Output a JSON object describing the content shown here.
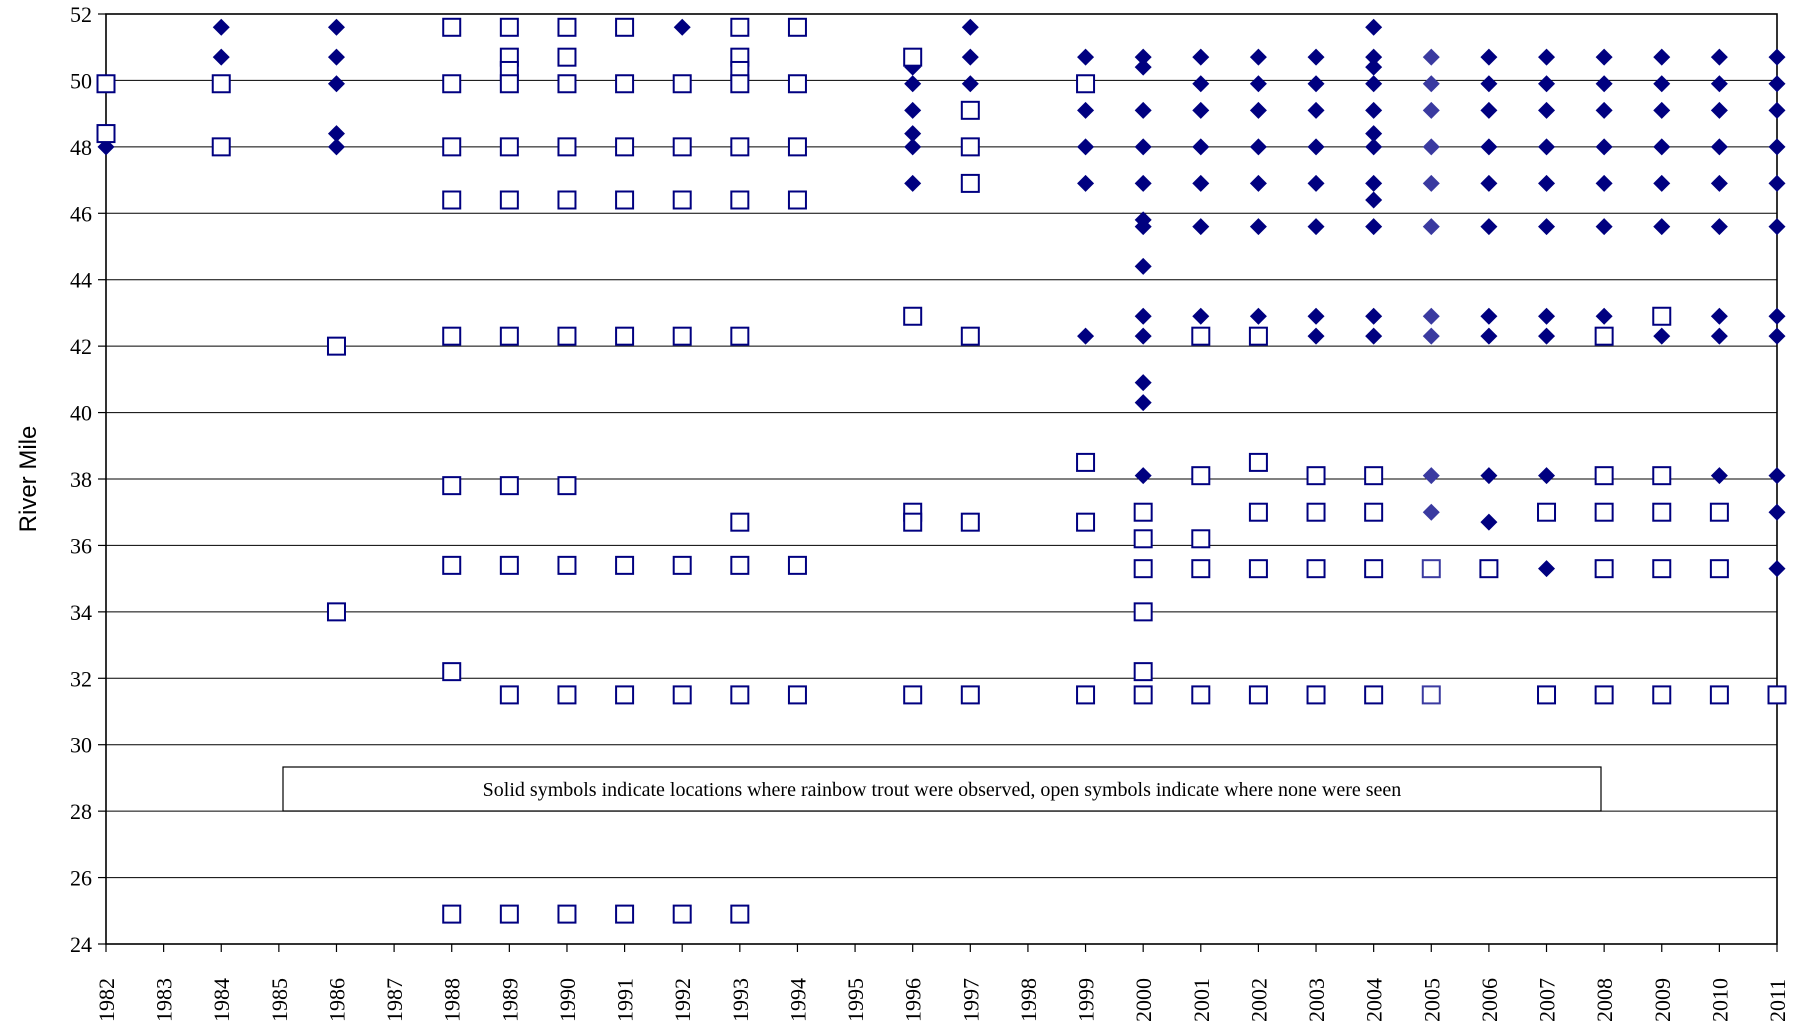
{
  "chart_data": {
    "type": "scatter",
    "ylabel": "River Mile",
    "xlabel": "",
    "ylim": [
      24,
      52
    ],
    "yticks": [
      24,
      26,
      28,
      30,
      32,
      34,
      36,
      38,
      40,
      42,
      44,
      46,
      48,
      50,
      52
    ],
    "xcategories": [
      1982,
      1983,
      1984,
      1985,
      1986,
      1987,
      1988,
      1989,
      1990,
      1991,
      1992,
      1993,
      1994,
      1995,
      1996,
      1997,
      1998,
      1999,
      2000,
      2001,
      2002,
      2003,
      2004,
      2005,
      2006,
      2007,
      2008,
      2009,
      2010,
      2011
    ],
    "grid": "horizontal",
    "annotation": "Solid symbols indicate locations where rainbow trout were observed, open symbols indicate where none were seen",
    "colors": {
      "marker": "#000080",
      "marker_2005": "#3a3aa0",
      "marker_teal": "#204a50",
      "axis": "#000000"
    },
    "series": [
      {
        "marker": "filled-diamond",
        "points": [
          [
            1982,
            48.0
          ],
          [
            1984,
            51.6
          ],
          [
            1984,
            50.7
          ],
          [
            1986,
            51.6
          ],
          [
            1986,
            50.7
          ],
          [
            1986,
            49.9
          ],
          [
            1986,
            48.4
          ],
          [
            1986,
            48.0
          ],
          [
            1992,
            51.6
          ],
          [
            1996,
            50.4
          ],
          [
            1996,
            49.9
          ],
          [
            1996,
            49.1
          ],
          [
            1996,
            48.4
          ],
          [
            1996,
            48.0
          ],
          [
            1996,
            46.9
          ],
          [
            1997,
            51.6
          ],
          [
            1997,
            50.7
          ],
          [
            1997,
            49.9
          ],
          [
            1999,
            50.7
          ],
          [
            1999,
            49.1
          ],
          [
            1999,
            48.0
          ],
          [
            1999,
            46.9
          ],
          [
            1999,
            42.3
          ],
          [
            2000,
            50.7
          ],
          [
            2000,
            50.4
          ],
          [
            2000,
            49.1
          ],
          [
            2000,
            48.0
          ],
          [
            2000,
            46.9
          ],
          [
            2000,
            45.8
          ],
          [
            2000,
            45.6
          ],
          [
            2000,
            44.4
          ],
          [
            2000,
            42.9
          ],
          [
            2000,
            42.3
          ],
          [
            2000,
            40.9
          ],
          [
            2000,
            40.3
          ],
          [
            2000,
            38.1
          ],
          [
            2001,
            50.7
          ],
          [
            2001,
            49.9
          ],
          [
            2001,
            49.1
          ],
          [
            2001,
            48.0
          ],
          [
            2001,
            46.9
          ],
          [
            2001,
            45.6
          ],
          [
            2001,
            42.9
          ],
          [
            2002,
            50.7
          ],
          [
            2002,
            49.9
          ],
          [
            2002,
            49.1
          ],
          [
            2002,
            48.0
          ],
          [
            2002,
            46.9
          ],
          [
            2002,
            45.6
          ],
          [
            2002,
            42.9
          ],
          [
            2003,
            50.7
          ],
          [
            2003,
            49.9
          ],
          [
            2003,
            49.1
          ],
          [
            2003,
            48.0
          ],
          [
            2003,
            46.9
          ],
          [
            2003,
            45.6
          ],
          [
            2003,
            42.9
          ],
          [
            2003,
            42.3
          ],
          [
            2004,
            51.6
          ],
          [
            2004,
            50.7
          ],
          [
            2004,
            50.4
          ],
          [
            2004,
            49.9
          ],
          [
            2004,
            49.1
          ],
          [
            2004,
            48.4
          ],
          [
            2004,
            48.0
          ],
          [
            2004,
            46.9
          ],
          [
            2004,
            46.4
          ],
          [
            2004,
            45.6
          ],
          [
            2004,
            42.9
          ],
          [
            2004,
            42.3
          ],
          [
            2005,
            50.7
          ],
          [
            2005,
            49.9
          ],
          [
            2005,
            49.1
          ],
          [
            2005,
            48.0
          ],
          [
            2005,
            46.9
          ],
          [
            2005,
            45.6
          ],
          [
            2005,
            42.9
          ],
          [
            2005,
            42.3
          ],
          [
            2005,
            38.1
          ],
          [
            2005,
            37.0
          ],
          [
            2006,
            50.7
          ],
          [
            2006,
            49.9
          ],
          [
            2006,
            49.1
          ],
          [
            2006,
            48.0
          ],
          [
            2006,
            46.9
          ],
          [
            2006,
            45.6
          ],
          [
            2006,
            42.9
          ],
          [
            2006,
            42.3
          ],
          [
            2006,
            38.1
          ],
          [
            2006,
            36.7
          ],
          [
            2007,
            50.7
          ],
          [
            2007,
            49.9
          ],
          [
            2007,
            49.1
          ],
          [
            2007,
            48.0
          ],
          [
            2007,
            46.9
          ],
          [
            2007,
            45.6
          ],
          [
            2007,
            42.9
          ],
          [
            2007,
            42.3
          ],
          [
            2007,
            38.1
          ],
          [
            2007,
            35.3
          ],
          [
            2008,
            50.7
          ],
          [
            2008,
            49.9
          ],
          [
            2008,
            49.1
          ],
          [
            2008,
            48.0
          ],
          [
            2008,
            46.9
          ],
          [
            2008,
            45.6
          ],
          [
            2008,
            42.9
          ],
          [
            2009,
            50.7
          ],
          [
            2009,
            49.9
          ],
          [
            2009,
            49.1
          ],
          [
            2009,
            48.0
          ],
          [
            2009,
            46.9
          ],
          [
            2009,
            45.6
          ],
          [
            2009,
            42.3
          ],
          [
            2010,
            50.7
          ],
          [
            2010,
            49.9
          ],
          [
            2010,
            49.1
          ],
          [
            2010,
            48.0
          ],
          [
            2010,
            46.9
          ],
          [
            2010,
            45.6
          ],
          [
            2010,
            42.9
          ],
          [
            2010,
            42.3
          ],
          [
            2010,
            38.1
          ],
          [
            2011,
            50.7
          ],
          [
            2011,
            49.9
          ],
          [
            2011,
            49.1
          ],
          [
            2011,
            48.0
          ],
          [
            2011,
            46.9
          ],
          [
            2011,
            45.6
          ],
          [
            2011,
            42.9
          ],
          [
            2011,
            42.3
          ],
          [
            2011,
            38.1
          ],
          [
            2011,
            37.0
          ],
          [
            2011,
            35.3
          ]
        ]
      },
      {
        "marker": "open-square",
        "points": [
          [
            1982,
            49.9
          ],
          [
            1982,
            48.4
          ],
          [
            1984,
            49.9
          ],
          [
            1984,
            48.0
          ],
          [
            1986,
            42.0
          ],
          [
            1986,
            34.0
          ],
          [
            1988,
            51.6
          ],
          [
            1988,
            49.9
          ],
          [
            1988,
            48.0
          ],
          [
            1988,
            46.4
          ],
          [
            1988,
            42.3
          ],
          [
            1988,
            37.8
          ],
          [
            1988,
            35.4
          ],
          [
            1988,
            32.2
          ],
          [
            1988,
            24.9
          ],
          [
            1989,
            51.6
          ],
          [
            1989,
            50.7
          ],
          [
            1989,
            50.3
          ],
          [
            1989,
            49.9
          ],
          [
            1989,
            48.0
          ],
          [
            1989,
            46.4
          ],
          [
            1989,
            42.3
          ],
          [
            1989,
            37.8
          ],
          [
            1989,
            35.4
          ],
          [
            1989,
            31.5
          ],
          [
            1989,
            24.9
          ],
          [
            1990,
            51.6
          ],
          [
            1990,
            50.7
          ],
          [
            1990,
            49.9
          ],
          [
            1990,
            48.0
          ],
          [
            1990,
            46.4
          ],
          [
            1990,
            42.3
          ],
          [
            1990,
            37.8
          ],
          [
            1990,
            35.4
          ],
          [
            1990,
            31.5
          ],
          [
            1990,
            24.9
          ],
          [
            1991,
            51.6
          ],
          [
            1991,
            49.9
          ],
          [
            1991,
            48.0
          ],
          [
            1991,
            46.4
          ],
          [
            1991,
            42.3
          ],
          [
            1991,
            35.4
          ],
          [
            1991,
            31.5
          ],
          [
            1991,
            24.9
          ],
          [
            1992,
            49.9
          ],
          [
            1992,
            48.0
          ],
          [
            1992,
            46.4
          ],
          [
            1992,
            42.3
          ],
          [
            1992,
            35.4
          ],
          [
            1992,
            31.5
          ],
          [
            1992,
            24.9
          ],
          [
            1993,
            51.6
          ],
          [
            1993,
            50.7
          ],
          [
            1993,
            50.3
          ],
          [
            1993,
            49.9
          ],
          [
            1993,
            48.0
          ],
          [
            1993,
            46.4
          ],
          [
            1993,
            42.3
          ],
          [
            1993,
            36.7
          ],
          [
            1993,
            35.4
          ],
          [
            1993,
            31.5
          ],
          [
            1993,
            24.9
          ],
          [
            1994,
            51.6
          ],
          [
            1994,
            49.9
          ],
          [
            1994,
            48.0
          ],
          [
            1994,
            46.4
          ],
          [
            1994,
            35.4
          ],
          [
            1994,
            31.5
          ],
          [
            1996,
            50.7
          ],
          [
            1996,
            42.9
          ],
          [
            1996,
            37.0
          ],
          [
            1996,
            36.7
          ],
          [
            1996,
            31.5
          ],
          [
            1997,
            49.1
          ],
          [
            1997,
            48.0
          ],
          [
            1997,
            46.9
          ],
          [
            1997,
            42.3
          ],
          [
            1997,
            36.7
          ],
          [
            1997,
            31.5
          ],
          [
            1999,
            49.9
          ],
          [
            1999,
            38.5
          ],
          [
            1999,
            36.7
          ],
          [
            1999,
            31.5
          ],
          [
            2000,
            37.0
          ],
          [
            2000,
            36.2
          ],
          [
            2000,
            35.3
          ],
          [
            2000,
            34.0
          ],
          [
            2000,
            32.2
          ],
          [
            2000,
            31.5
          ],
          [
            2001,
            42.3
          ],
          [
            2001,
            38.1
          ],
          [
            2001,
            36.2
          ],
          [
            2001,
            35.3
          ],
          [
            2001,
            31.5
          ],
          [
            2002,
            42.3
          ],
          [
            2002,
            38.5
          ],
          [
            2002,
            37.0
          ],
          [
            2002,
            35.3
          ],
          [
            2002,
            31.5
          ],
          [
            2003,
            38.1
          ],
          [
            2003,
            37.0
          ],
          [
            2003,
            35.3
          ],
          [
            2003,
            31.5
          ],
          [
            2004,
            38.1
          ],
          [
            2004,
            37.0
          ],
          [
            2004,
            35.3
          ],
          [
            2004,
            31.5
          ],
          [
            2005,
            35.3
          ],
          [
            2005,
            31.5
          ],
          [
            2006,
            35.3
          ],
          [
            2007,
            37.0
          ],
          [
            2007,
            31.5
          ],
          [
            2008,
            42.3
          ],
          [
            2008,
            38.1
          ],
          [
            2008,
            37.0
          ],
          [
            2008,
            35.3
          ],
          [
            2008,
            31.5
          ],
          [
            2009,
            42.9
          ],
          [
            2009,
            38.1
          ],
          [
            2009,
            37.0
          ],
          [
            2009,
            35.3
          ],
          [
            2009,
            31.5
          ],
          [
            2010,
            37.0
          ],
          [
            2010,
            35.3
          ],
          [
            2010,
            31.5
          ],
          [
            2011,
            31.5
          ]
        ]
      }
    ]
  }
}
